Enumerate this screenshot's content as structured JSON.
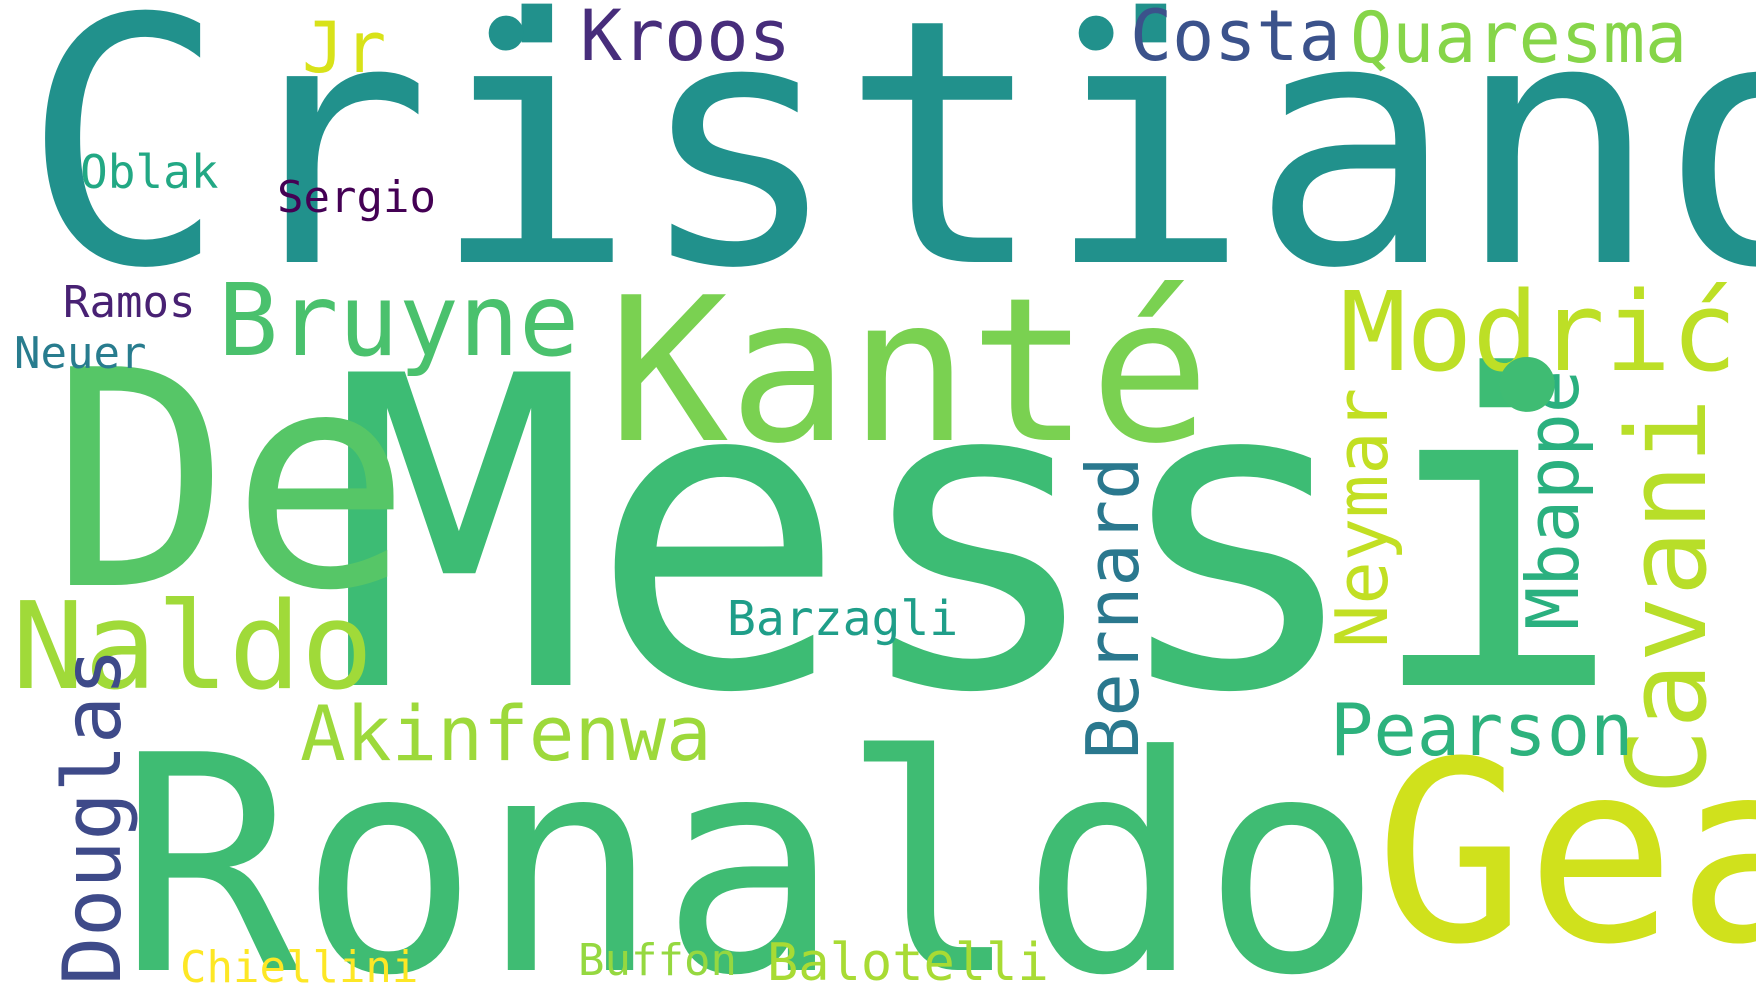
{
  "words": [
    {
      "text": "Cristiano",
      "color": "#21918c"
    },
    {
      "text": "Messi",
      "color": "#3dbc74"
    },
    {
      "text": "Ronaldo",
      "color": "#3fbc73"
    },
    {
      "text": "De",
      "color": "#56c667"
    },
    {
      "text": "Kanté",
      "color": "#7ad151"
    },
    {
      "text": "Gea",
      "color": "#d0e11c"
    },
    {
      "text": "Naldo",
      "color": "#a0da39"
    },
    {
      "text": "Bruyne",
      "color": "#4ac16d"
    },
    {
      "text": "Modrić",
      "color": "#bddf26"
    },
    {
      "text": "Cavani",
      "color": "#b8de29"
    },
    {
      "text": "Douglas",
      "color": "#3e4a89"
    },
    {
      "text": "Akinfenwa",
      "color": "#9dd93b"
    },
    {
      "text": "Bernard",
      "color": "#2a788e"
    },
    {
      "text": "Neymar",
      "color": "#c2df23"
    },
    {
      "text": "Mbappé",
      "color": "#2ab07f"
    },
    {
      "text": "Pearson",
      "color": "#2db27d"
    },
    {
      "text": "Barzagli",
      "color": "#1f9e89"
    },
    {
      "text": "Kroos",
      "color": "#472d7b"
    },
    {
      "text": "Costa",
      "color": "#3b528b"
    },
    {
      "text": "Quaresma",
      "color": "#86d549"
    },
    {
      "text": "Jr",
      "color": "#d8e219"
    },
    {
      "text": "Oblak",
      "color": "#22a884"
    },
    {
      "text": "Sergio",
      "color": "#440154"
    },
    {
      "text": "Ramos",
      "color": "#482173"
    },
    {
      "text": "Neuer",
      "color": "#287c8e"
    },
    {
      "text": "Buffon",
      "color": "#95d840"
    },
    {
      "text": "Balotelli",
      "color": "#a8db34"
    },
    {
      "text": "Chiellini",
      "color": "#fde725"
    },
    {
      "text": "•",
      "color": "#21918c"
    },
    {
      "text": "•",
      "color": "#21918c"
    },
    {
      "text": "•",
      "color": "#3fbc73"
    }
  ]
}
